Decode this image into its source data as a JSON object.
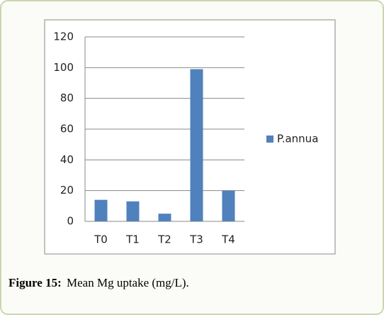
{
  "chart_data": {
    "type": "bar",
    "categories": [
      "T0",
      "T1",
      "T2",
      "T3",
      "T4"
    ],
    "series": [
      {
        "name": "P.annua",
        "color": "#4f81bd",
        "values": [
          14,
          13,
          5,
          99,
          20
        ]
      }
    ],
    "ylim": [
      0,
      120
    ],
    "yticks": [
      0,
      20,
      40,
      60,
      80,
      100,
      120
    ],
    "grid": true,
    "legend": "right"
  },
  "caption": {
    "label": "Figure 15:",
    "text": "Mean Mg uptake (mg/L)."
  }
}
